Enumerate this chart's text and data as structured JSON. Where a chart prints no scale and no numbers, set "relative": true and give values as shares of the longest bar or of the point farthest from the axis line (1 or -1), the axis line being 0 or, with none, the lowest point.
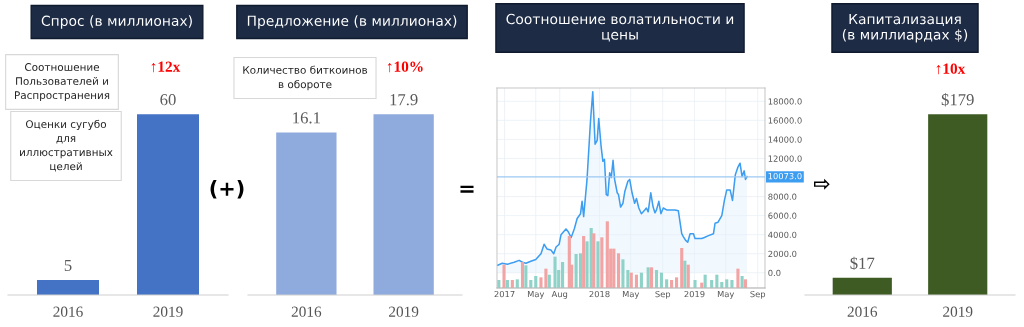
{
  "chart_data": [
    {
      "type": "bar",
      "title": "Спрос (в миллионах)",
      "categories": [
        "2016",
        "2019"
      ],
      "values": [
        5,
        60
      ],
      "color": "#4472c4",
      "tick_labels": "x",
      "data_labels": true,
      "annotations": [
        "↑12x",
        "Соотношение\nПользователей и\nРаспространения",
        "Оценки сугубо\nдля\nиллюстративных\nцелей"
      ]
    },
    {
      "type": "bar",
      "title": "Предложение (в миллионах)",
      "categories": [
        "2016",
        "2019"
      ],
      "values": [
        16.1,
        17.9
      ],
      "color": "#8faadc",
      "tick_labels": "x",
      "data_labels": true,
      "annotations": [
        "↑10%",
        "Количество биткоинов\nв обороте"
      ]
    },
    {
      "type": "area",
      "title": "Соотношение волатильности и\nцены",
      "grid": true,
      "xlim": [
        "2016-12-03",
        "2019-09-29"
      ],
      "xticks": [
        {
          "value": "2017-01-01",
          "label": "2017"
        },
        {
          "value": "2017-05-01",
          "label": "May"
        },
        {
          "value": "2017-08-01",
          "label": "Aug"
        },
        {
          "value": "2018-01-01",
          "label": "2018"
        },
        {
          "value": "2018-05-01",
          "label": "May"
        },
        {
          "value": "2018-09-01",
          "label": "Sep"
        },
        {
          "value": "2019-01-01",
          "label": "2019"
        },
        {
          "value": "2019-05-01",
          "label": "May"
        },
        {
          "value": "2019-09-01",
          "label": "Sep"
        }
      ],
      "ylim": [
        -1600,
        19400
      ],
      "yticks": [
        {
          "value": 0,
          "label": "0.0"
        },
        {
          "value": 2000,
          "label": "2000.0"
        },
        {
          "value": 4000,
          "label": "4000.0"
        },
        {
          "value": 6000,
          "label": "6000.0"
        },
        {
          "value": 8000,
          "label": "8000.0"
        },
        {
          "value": 12000,
          "label": "12000.0"
        },
        {
          "value": 14000,
          "label": "14000.0"
        },
        {
          "value": 16000,
          "label": "16000.0"
        },
        {
          "value": 18000,
          "label": "18000.0"
        }
      ],
      "ref_lines": [
        {
          "axis": "y",
          "value": 10073,
          "label": "10073.0",
          "color": "#9cc8f0"
        }
      ],
      "series": [
        {
          "type": "area",
          "color": "#3d9df0",
          "x": [
            "2016-12-06",
            "2016-12-23",
            "2017-01-12",
            "2017-02-07",
            "2017-02-26",
            "2017-03-11",
            "2017-03-24",
            "2017-04-12",
            "2017-05-01",
            "2017-05-21",
            "2017-06-02",
            "2017-06-13",
            "2017-06-28",
            "2017-07-09",
            "2017-07-18",
            "2017-07-30",
            "2017-08-06",
            "2017-08-25",
            "2017-09-03",
            "2017-09-14",
            "2017-09-26",
            "2017-10-07",
            "2017-10-20",
            "2017-10-26",
            "2017-11-01",
            "2017-11-14",
            "2017-11-27",
            "2017-12-06",
            "2017-12-15",
            "2017-12-23",
            "2017-12-29",
            "2018-01-07",
            "2018-01-14",
            "2018-01-20",
            "2018-01-27",
            "2018-02-02",
            "2018-02-09",
            "2018-02-15",
            "2018-02-22",
            "2018-02-28",
            "2018-03-10",
            "2018-03-15",
            "2018-03-23",
            "2018-04-01",
            "2018-04-08",
            "2018-04-20",
            "2018-04-27",
            "2018-05-06",
            "2018-05-16",
            "2018-05-23",
            "2018-06-01",
            "2018-06-11",
            "2018-06-24",
            "2018-06-30",
            "2018-07-07",
            "2018-07-17",
            "2018-07-26",
            "2018-08-02",
            "2018-08-08",
            "2018-08-17",
            "2018-08-25",
            "2018-09-03",
            "2018-09-16",
            "2018-09-28",
            "2018-10-18",
            "2018-10-31",
            "2018-11-13",
            "2018-11-19",
            "2018-11-28",
            "2018-12-06",
            "2018-12-15",
            "2018-12-28",
            "2019-01-03",
            "2019-01-16",
            "2019-01-29",
            "2019-02-08",
            "2019-02-24",
            "2019-03-15",
            "2019-03-21",
            "2019-04-01",
            "2019-04-16",
            "2019-04-26",
            "2019-05-05",
            "2019-05-18",
            "2019-05-27",
            "2019-06-07",
            "2019-06-17",
            "2019-06-25",
            "2019-07-03",
            "2019-07-11",
            "2019-07-16",
            "2019-07-22"
          ],
          "values": [
            800,
            1000,
            900,
            1100,
            1300,
            1100,
            1000,
            1200,
            1400,
            2000,
            3000,
            2500,
            2400,
            2000,
            2700,
            3000,
            4000,
            4600,
            4300,
            3700,
            4600,
            5700,
            6200,
            7500,
            5900,
            9800,
            15800,
            19000,
            13500,
            13900,
            16200,
            13300,
            11700,
            11900,
            8200,
            8100,
            10500,
            10000,
            11800,
            9800,
            8400,
            8200,
            6900,
            7300,
            8500,
            9600,
            9800,
            8400,
            7300,
            7800,
            6800,
            6200,
            6600,
            6800,
            6400,
            8400,
            6900,
            6300,
            6600,
            7500,
            6200,
            6800,
            6600,
            6600,
            6600,
            6500,
            4100,
            3800,
            3400,
            3200,
            4100,
            4100,
            3600,
            3600,
            3600,
            3700,
            3900,
            4100,
            5200,
            5300,
            6000,
            7600,
            8700,
            8700,
            7600,
            10300,
            11100,
            11500,
            10100,
            10700,
            9800,
            10100
          ]
        }
      ]
    },
    {
      "type": "bar",
      "relative": true,
      "xlim": [
        "2016-12-03",
        "2019-09-29"
      ],
      "x": [
        "2016-12-10",
        "2016-12-30",
        "2017-01-12",
        "2017-01-31",
        "2017-02-19",
        "2017-03-11",
        "2017-03-24",
        "2017-04-12",
        "2017-05-01",
        "2017-05-21",
        "2017-06-09",
        "2017-06-22",
        "2017-07-14",
        "2017-07-28",
        "2017-08-12",
        "2017-09-07",
        "2017-09-16",
        "2017-10-03",
        "2017-10-20",
        "2017-11-01",
        "2017-11-14",
        "2017-11-30",
        "2017-12-10",
        "2017-12-26",
        "2018-01-10",
        "2018-01-31",
        "2018-02-13",
        "2018-02-25",
        "2018-03-15",
        "2018-04-01",
        "2018-04-20",
        "2018-05-03",
        "2018-05-23",
        "2018-06-11",
        "2018-07-07",
        "2018-07-20",
        "2018-08-08",
        "2018-08-27",
        "2018-09-16",
        "2018-10-05",
        "2018-10-24",
        "2018-11-13",
        "2018-11-25",
        "2018-12-08",
        "2019-01-03",
        "2019-01-29",
        "2019-02-11",
        "2019-03-08",
        "2019-03-28",
        "2019-04-16",
        "2019-05-05",
        "2019-05-25",
        "2019-06-17",
        "2019-07-03",
        "2019-07-16"
      ],
      "values": [
        0.12,
        0.35,
        0.12,
        0.12,
        0.13,
        0.39,
        0.34,
        0.12,
        0.18,
        0.16,
        0.29,
        0.2,
        0.47,
        0.27,
        0.39,
        0.78,
        0.35,
        0.51,
        0.52,
        0.78,
        0.7,
        0.9,
        0.82,
        0.7,
        0.76,
        1,
        0.59,
        0.59,
        0.52,
        0.43,
        0.27,
        0.23,
        0.2,
        0.23,
        0.31,
        0.31,
        0.27,
        0.23,
        0.13,
        0.12,
        0.16,
        0.6,
        0.41,
        0.35,
        0.12,
        0.08,
        0.2,
        0.12,
        0.2,
        0.09,
        0.13,
        0.12,
        0.29,
        0.18,
        0.13
      ],
      "colors": [
        "#8fd3c8",
        "#f2a3a3",
        "#8fd3c8",
        "#f2a3a3",
        "#8fd3c8",
        "#f2a3a3",
        "#8fd3c8",
        "#8fd3c8",
        "#8fd3c8",
        "#f2a3a3",
        "#f2a3a3",
        "#8fd3c8",
        "#8fd3c8",
        "#8fd3c8",
        "#8fd3c8",
        "#f2a3a3",
        "#f2a3a3",
        "#8fd3c8",
        "#8fd3c8",
        "#f2a3a3",
        "#8fd3c8",
        "#8fd3c8",
        "#f2a3a3",
        "#8fd3c8",
        "#f2a3a3",
        "#f2a3a3",
        "#f2a3a3",
        "#f2a3a3",
        "#f2a3a3",
        "#8fd3c8",
        "#8fd3c8",
        "#f2a3a3",
        "#f2a3a3",
        "#8fd3c8",
        "#8fd3c8",
        "#f2a3a3",
        "#8fd3c8",
        "#8fd3c8",
        "#8fd3c8",
        "#f2a3a3",
        "#f2a3a3",
        "#f2a3a3",
        "#8fd3c8",
        "#f2a3a3",
        "#8fd3c8",
        "#f2a3a3",
        "#8fd3c8",
        "#8fd3c8",
        "#8fd3c8",
        "#8fd3c8",
        "#8fd3c8",
        "#8fd3c8",
        "#f2a3a3",
        "#8fd3c8",
        "#f2a3a3"
      ]
    },
    {
      "type": "bar",
      "title": "Капитализация\n(в миллиардах $)",
      "categories": [
        "2016",
        "2019"
      ],
      "values": [
        17,
        179
      ],
      "color": "#3e5b23",
      "tick_labels": "x",
      "value_labels": [
        "$17",
        "$179"
      ],
      "annotations": [
        "↑10x"
      ]
    },
    {
      "type": "other",
      "annotations": [
        "(+)",
        "=",
        "⇨"
      ]
    }
  ]
}
